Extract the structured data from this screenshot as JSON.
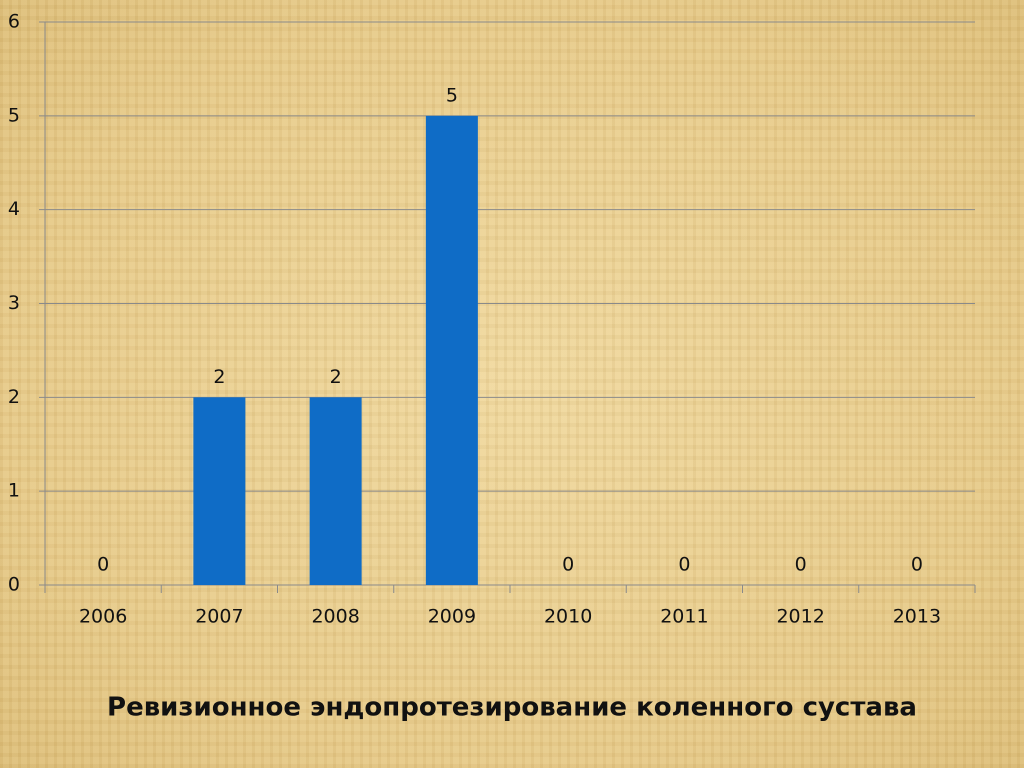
{
  "chart_data": {
    "type": "bar",
    "title": "Ревизионное эндопротезирование коленного сустава",
    "categories": [
      "2006",
      "2007",
      "2008",
      "2009",
      "2010",
      "2011",
      "2012",
      "2013"
    ],
    "values": [
      0,
      2,
      2,
      5,
      0,
      0,
      0,
      0
    ],
    "color": "#0f6cc6",
    "ylim": [
      0,
      6
    ],
    "yticks": [
      0,
      1,
      2,
      3,
      4,
      5,
      6
    ],
    "grid": true,
    "data_labels": true
  }
}
